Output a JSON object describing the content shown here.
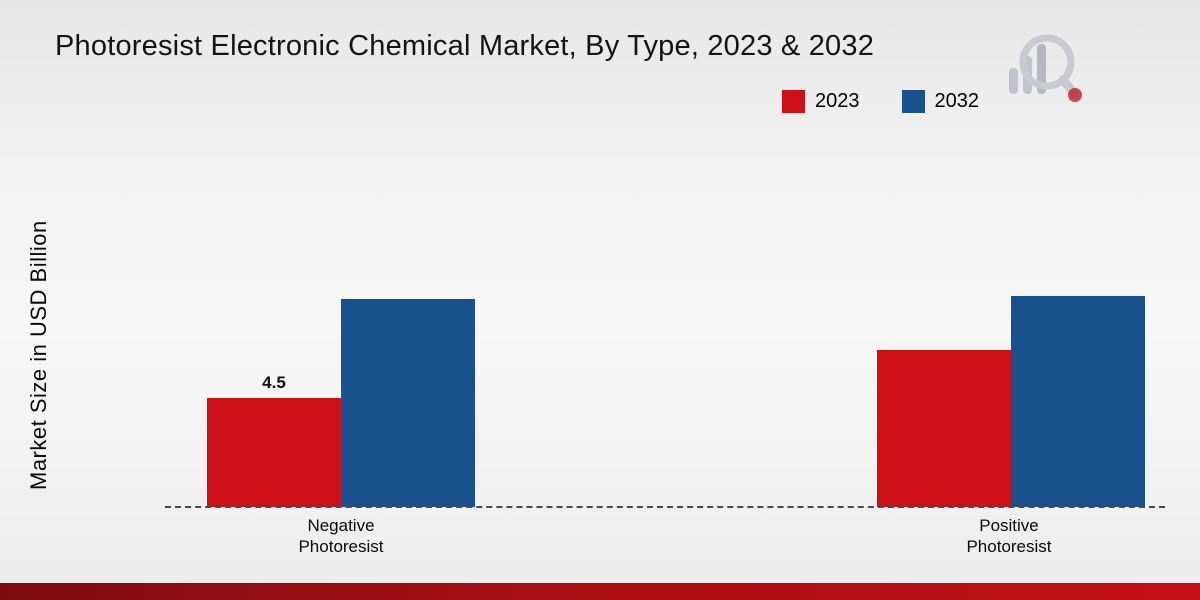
{
  "title": "Photoresist Electronic Chemical Market, By Type, 2023 & 2032",
  "ylabel": "Market Size in USD Billion",
  "chart_data": {
    "type": "bar",
    "title": "Photoresist Electronic Chemical Market, By Type, 2023 & 2032",
    "categories": [
      "Negative Photoresist",
      "Positive Photoresist"
    ],
    "series": [
      {
        "name": "2023",
        "color": "#cc1016",
        "values": [
          4.5,
          6.5
        ]
      },
      {
        "name": "2032",
        "color": "#19518e",
        "values": [
          8.6,
          8.7
        ]
      }
    ],
    "xlabel": "",
    "ylabel": "Market Size in USD Billion",
    "ylim": [
      0,
      10
    ],
    "grid": false,
    "legend_position": "top-right",
    "baseline_style": "dashed",
    "data_labels": [
      {
        "series_index": 0,
        "category_index": 0,
        "text": "4.5"
      }
    ]
  },
  "colors": {
    "footer_left": "#7d0c10",
    "footer_right": "#c31017",
    "background": "#ececec",
    "axis_dash": "#4a4a4a"
  },
  "logo": {
    "name": "brand-logo"
  }
}
